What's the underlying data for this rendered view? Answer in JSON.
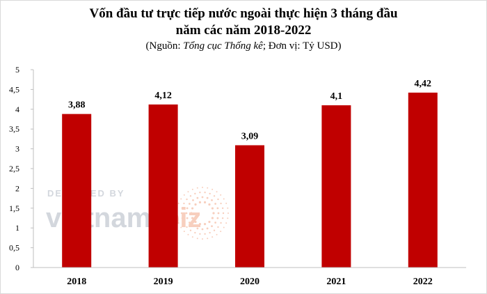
{
  "chart_data": {
    "type": "bar",
    "title_lines": [
      "Vốn đầu tư trực tiếp nước ngoài thực hiện 3 tháng đầu",
      "năm các năm 2018-2022"
    ],
    "subtitle": {
      "prefix": "(Nguồn: ",
      "source": "Tổng cục Thống kê",
      "suffix": "; Đơn vị: Tỷ USD)"
    },
    "categories": [
      "2018",
      "2019",
      "2020",
      "2021",
      "2022"
    ],
    "values": [
      3.88,
      4.12,
      3.09,
      4.1,
      4.42
    ],
    "data_labels": [
      "3,88",
      "4,12",
      "3,09",
      "4,1",
      "4,42"
    ],
    "y_ticks": [
      0,
      0.5,
      1,
      1.5,
      2,
      2.5,
      3,
      3.5,
      4,
      4.5,
      5
    ],
    "y_tick_labels": [
      "0",
      "0,5",
      "1",
      "1,5",
      "2",
      "2,5",
      "3",
      "3,5",
      "4",
      "4,5",
      "5"
    ],
    "ylim": [
      0,
      5
    ],
    "grid": false,
    "legend": "none",
    "bar_color": "#c00000"
  },
  "watermark": {
    "top_text": "DESIGNED BY",
    "brand_a": "vietnam",
    "brand_b": "biz",
    "color_a": "#b0b7c3",
    "color_b": "#f2a98a"
  }
}
